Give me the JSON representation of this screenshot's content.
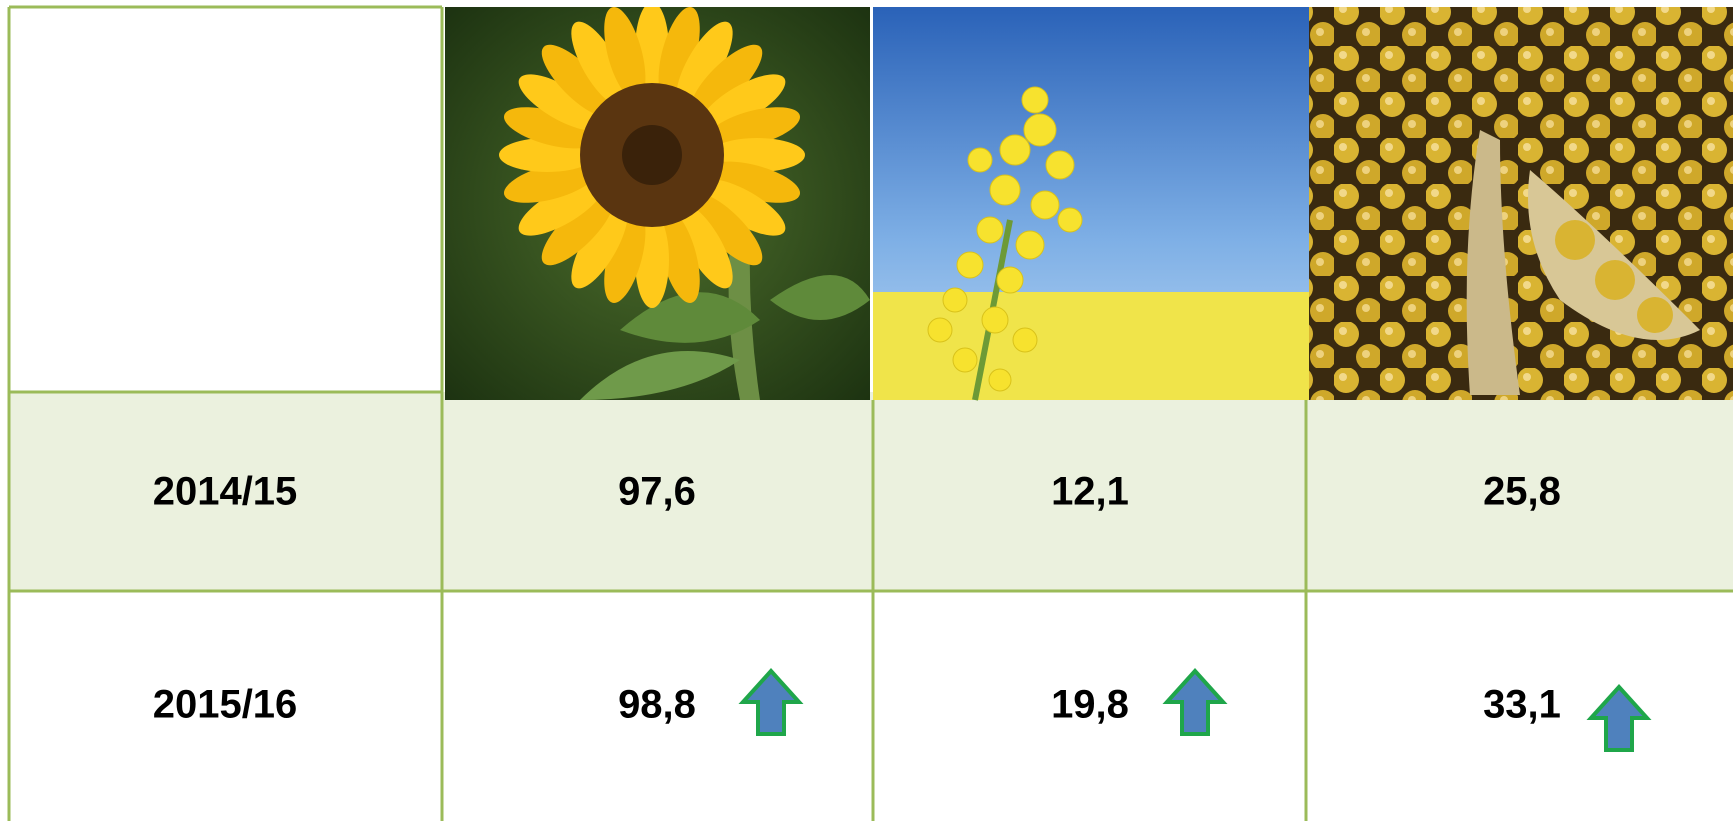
{
  "table": {
    "rows": [
      [
        "2014/15",
        "97,6",
        "12,1",
        "25,8"
      ],
      [
        "2015/16",
        "98,8",
        "19,8",
        "33,1"
      ]
    ]
  }
}
